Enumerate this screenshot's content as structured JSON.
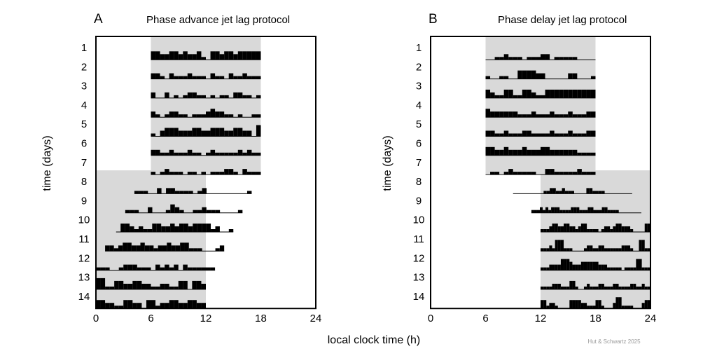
{
  "xlabel": "local clock time (h)",
  "credit": "Hut & Schwartz 2025",
  "chart_data": [
    {
      "type": "actogram",
      "panel_label": "A",
      "title": "Phase advance jet lag protocol",
      "xlabel": "local clock time (h)",
      "ylabel": "time (days)",
      "xlim": [
        0,
        24
      ],
      "xticks": [
        "0",
        "6",
        "12",
        "18",
        "24"
      ],
      "days": [
        "1",
        "2",
        "3",
        "4",
        "5",
        "6",
        "7",
        "8",
        "9",
        "10",
        "11",
        "12",
        "13",
        "14"
      ],
      "light_periods": [
        {
          "days": [
            1,
            7
          ],
          "start_h": 6,
          "end_h": 18
        },
        {
          "days": [
            8,
            14
          ],
          "start_h": 0,
          "end_h": 12
        }
      ],
      "activity": [
        {
          "day": 1,
          "start_h": 6.0,
          "end_h": 18.0,
          "levels": [
            3,
            3,
            2,
            2,
            3,
            3,
            2,
            3,
            2,
            2,
            3,
            1,
            0,
            3,
            3,
            2,
            3,
            3,
            2,
            3,
            3,
            3,
            3,
            3
          ]
        },
        {
          "day": 2,
          "start_h": 6.0,
          "end_h": 18.0,
          "levels": [
            2,
            2,
            1,
            0,
            2,
            1,
            1,
            1,
            2,
            1,
            1,
            1,
            0,
            2,
            1,
            1,
            0,
            2,
            1,
            1,
            2,
            1,
            1,
            1
          ]
        },
        {
          "day": 3,
          "start_h": 6.0,
          "end_h": 18.0,
          "levels": [
            2,
            0,
            0,
            2,
            0,
            1,
            0,
            1,
            2,
            2,
            1,
            1,
            0,
            1,
            0,
            1,
            1,
            0,
            2,
            2,
            1,
            1,
            0,
            1
          ]
        },
        {
          "day": 4,
          "start_h": 6.0,
          "end_h": 18.0,
          "levels": [
            2,
            1,
            0,
            1,
            2,
            2,
            1,
            1,
            0,
            1,
            1,
            1,
            2,
            3,
            2,
            2,
            1,
            1,
            0,
            1,
            0,
            0,
            1,
            1
          ]
        },
        {
          "day": 5,
          "start_h": 6.0,
          "end_h": 18.0,
          "levels": [
            1,
            0,
            2,
            3,
            3,
            3,
            2,
            2,
            2,
            3,
            3,
            2,
            2,
            3,
            3,
            3,
            2,
            2,
            3,
            3,
            2,
            2,
            0,
            4
          ]
        },
        {
          "day": 6,
          "start_h": 6.0,
          "end_h": 18.0,
          "levels": [
            2,
            2,
            1,
            1,
            2,
            1,
            1,
            1,
            2,
            1,
            1,
            0,
            1,
            2,
            1,
            1,
            1,
            1,
            1,
            2,
            1,
            2,
            1,
            1
          ]
        },
        {
          "day": 7,
          "start_h": 6.0,
          "end_h": 18.0,
          "levels": [
            1,
            0,
            1,
            2,
            1,
            1,
            1,
            0,
            1,
            1,
            0,
            1,
            0,
            1,
            1,
            1,
            2,
            2,
            1,
            0,
            2,
            1,
            1,
            1
          ]
        },
        {
          "day": 8,
          "start_h": 4.2,
          "end_h": 17.0,
          "levels": [
            1,
            1,
            1,
            0,
            0,
            2,
            0,
            2,
            2,
            1,
            1,
            1,
            1,
            0,
            1,
            2,
            0,
            0,
            0,
            0,
            0,
            0,
            0,
            0,
            0,
            1
          ]
        },
        {
          "day": 9,
          "start_h": 3.2,
          "end_h": 16.0,
          "levels": [
            1,
            1,
            1,
            0,
            0,
            2,
            0,
            0,
            0,
            1,
            3,
            2,
            1,
            0,
            0,
            1,
            1,
            2,
            1,
            1,
            1,
            0,
            0,
            0,
            0,
            1
          ]
        },
        {
          "day": 10,
          "start_h": 2.2,
          "end_h": 15.0,
          "levels": [
            0,
            3,
            3,
            2,
            1,
            2,
            1,
            1,
            3,
            3,
            2,
            2,
            3,
            2,
            3,
            3,
            2,
            3,
            3,
            3,
            3,
            1,
            2,
            0,
            0,
            1
          ]
        },
        {
          "day": 11,
          "start_h": 1.0,
          "end_h": 14.0,
          "levels": [
            2,
            2,
            1,
            2,
            3,
            3,
            2,
            2,
            3,
            2,
            2,
            1,
            2,
            2,
            3,
            2,
            2,
            3,
            3,
            1,
            1,
            1,
            0,
            0,
            0,
            1,
            2
          ]
        },
        {
          "day": 12,
          "start_h": 0.0,
          "end_h": 13.0,
          "levels": [
            1,
            1,
            1,
            0,
            0,
            1,
            2,
            2,
            2,
            1,
            1,
            1,
            0,
            2,
            1,
            2,
            1,
            2,
            0,
            2,
            1,
            1,
            1,
            1,
            1,
            1
          ]
        },
        {
          "day": 13,
          "start_h": 0.0,
          "end_h": 12.0,
          "levels": [
            4,
            4,
            1,
            1,
            3,
            3,
            2,
            2,
            3,
            3,
            2,
            2,
            1,
            1,
            2,
            2,
            1,
            1,
            3,
            3,
            0,
            3,
            3,
            2
          ]
        },
        {
          "day": 14,
          "start_h": 0.0,
          "end_h": 12.0,
          "levels": [
            3,
            3,
            2,
            2,
            1,
            1,
            3,
            3,
            2,
            2,
            0,
            3,
            3,
            1,
            2,
            2,
            3,
            3,
            2,
            2,
            3,
            3,
            2,
            2
          ]
        }
      ]
    },
    {
      "type": "actogram",
      "panel_label": "B",
      "title": "Phase delay jet lag protocol",
      "xlabel": "local clock time (h)",
      "ylabel": "time (days)",
      "xlim": [
        0,
        24
      ],
      "xticks": [
        "0",
        "6",
        "12",
        "18",
        "24"
      ],
      "days": [
        "1",
        "2",
        "3",
        "4",
        "5",
        "6",
        "7",
        "8",
        "9",
        "10",
        "11",
        "12",
        "13",
        "14"
      ],
      "light_periods": [
        {
          "days": [
            1,
            7
          ],
          "start_h": 6,
          "end_h": 18
        },
        {
          "days": [
            8,
            14
          ],
          "start_h": 12,
          "end_h": 24
        }
      ],
      "activity": [
        {
          "day": 1,
          "start_h": 6.0,
          "end_h": 18.0,
          "levels": [
            0,
            0,
            1,
            1,
            2,
            1,
            1,
            1,
            0,
            1,
            1,
            1,
            2,
            2,
            0,
            1,
            1,
            1,
            1,
            1,
            0,
            0,
            0,
            0
          ]
        },
        {
          "day": 2,
          "start_h": 6.0,
          "end_h": 18.0,
          "levels": [
            1,
            0,
            0,
            1,
            1,
            0,
            0,
            3,
            3,
            3,
            3,
            2,
            2,
            0,
            0,
            0,
            0,
            0,
            2,
            2,
            0,
            0,
            0,
            1
          ]
        },
        {
          "day": 3,
          "start_h": 6.0,
          "end_h": 18.0,
          "levels": [
            3,
            2,
            1,
            1,
            3,
            3,
            1,
            1,
            3,
            3,
            2,
            1,
            1,
            3,
            3,
            3,
            3,
            3,
            3,
            3,
            3,
            3,
            3,
            3
          ]
        },
        {
          "day": 4,
          "start_h": 6.0,
          "end_h": 18.0,
          "levels": [
            3,
            2,
            2,
            2,
            2,
            2,
            2,
            1,
            1,
            1,
            2,
            1,
            1,
            1,
            2,
            1,
            1,
            1,
            2,
            1,
            1,
            1,
            2,
            2
          ]
        },
        {
          "day": 5,
          "start_h": 6.0,
          "end_h": 18.0,
          "levels": [
            2,
            2,
            1,
            1,
            2,
            1,
            1,
            1,
            2,
            2,
            1,
            1,
            1,
            1,
            2,
            1,
            1,
            1,
            2,
            1,
            1,
            1,
            2,
            2
          ]
        },
        {
          "day": 6,
          "start_h": 6.0,
          "end_h": 18.0,
          "levels": [
            3,
            3,
            2,
            2,
            3,
            2,
            2,
            2,
            3,
            2,
            2,
            2,
            3,
            3,
            2,
            2,
            2,
            2,
            2,
            2,
            1,
            1,
            1,
            1
          ]
        },
        {
          "day": 7,
          "start_h": 6.0,
          "end_h": 18.0,
          "levels": [
            0,
            1,
            1,
            0,
            1,
            2,
            1,
            1,
            1,
            1,
            1,
            0,
            0,
            2,
            2,
            1,
            1,
            1,
            1,
            1,
            2,
            1,
            1,
            1
          ]
        },
        {
          "day": 8,
          "start_h": 9.0,
          "end_h": 22.0,
          "levels": [
            0,
            0,
            0,
            0,
            0,
            0,
            0,
            0,
            0,
            0,
            1,
            1,
            2,
            2,
            1,
            1,
            2,
            1,
            1,
            1,
            0,
            0,
            0,
            0,
            2,
            2,
            1,
            1,
            1,
            1,
            0,
            0,
            0,
            0,
            0,
            0,
            0,
            0,
            0
          ]
        },
        {
          "day": 9,
          "start_h": 11.0,
          "end_h": 23.0,
          "levels": [
            1,
            1,
            1,
            2,
            1,
            2,
            1,
            2,
            2,
            2,
            1,
            1,
            1,
            1,
            2,
            2,
            2,
            1,
            1,
            1,
            2,
            2,
            1,
            1,
            1,
            2,
            2,
            1,
            1,
            1,
            1,
            0,
            0,
            0,
            0,
            0,
            0,
            0,
            0
          ]
        },
        {
          "day": 10,
          "start_h": 12.0,
          "end_h": 24.0,
          "levels": [
            1,
            1,
            1,
            2,
            3,
            3,
            2,
            2,
            3,
            3,
            2,
            2,
            1,
            2,
            3,
            3,
            1,
            1,
            1,
            1,
            0,
            1,
            2,
            2,
            1,
            2,
            3,
            3,
            2,
            2,
            2,
            1,
            0,
            0,
            0,
            0,
            3,
            3
          ]
        },
        {
          "day": 11,
          "start_h": 12.0,
          "end_h": 24.0,
          "levels": [
            1,
            1,
            1,
            2,
            1,
            4,
            4,
            4,
            1,
            1,
            1,
            0,
            0,
            0,
            0,
            1,
            2,
            2,
            1,
            1,
            2,
            2,
            1,
            1,
            1,
            1,
            1,
            1,
            2,
            2,
            2,
            1,
            0,
            0,
            4,
            4,
            1,
            1
          ]
        },
        {
          "day": 12,
          "start_h": 12.0,
          "end_h": 24.0,
          "levels": [
            1,
            1,
            1,
            2,
            2,
            2,
            2,
            4,
            4,
            4,
            3,
            2,
            2,
            2,
            3,
            3,
            3,
            3,
            3,
            3,
            2,
            2,
            2,
            1,
            1,
            1,
            1,
            1,
            0,
            1,
            1,
            1,
            1,
            4,
            4,
            1,
            1,
            1
          ]
        },
        {
          "day": 13,
          "start_h": 12.0,
          "end_h": 24.0,
          "levels": [
            1,
            1,
            1,
            1,
            2,
            2,
            2,
            1,
            1,
            1,
            3,
            3,
            1,
            0,
            0,
            1,
            2,
            1,
            1,
            1,
            2,
            2,
            1,
            1,
            1,
            2,
            2,
            1,
            1,
            1,
            1,
            2,
            2,
            1,
            1,
            2,
            1,
            1
          ]
        },
        {
          "day": 14,
          "start_h": 12.0,
          "end_h": 24.0,
          "levels": [
            3,
            3,
            1,
            2,
            2,
            1,
            0,
            0,
            0,
            0,
            3,
            3,
            3,
            3,
            2,
            2,
            1,
            1,
            1,
            3,
            3,
            1,
            0,
            0,
            0,
            2,
            4,
            4,
            1,
            1,
            1,
            1,
            0,
            0,
            0,
            2,
            3,
            3
          ]
        }
      ]
    }
  ]
}
